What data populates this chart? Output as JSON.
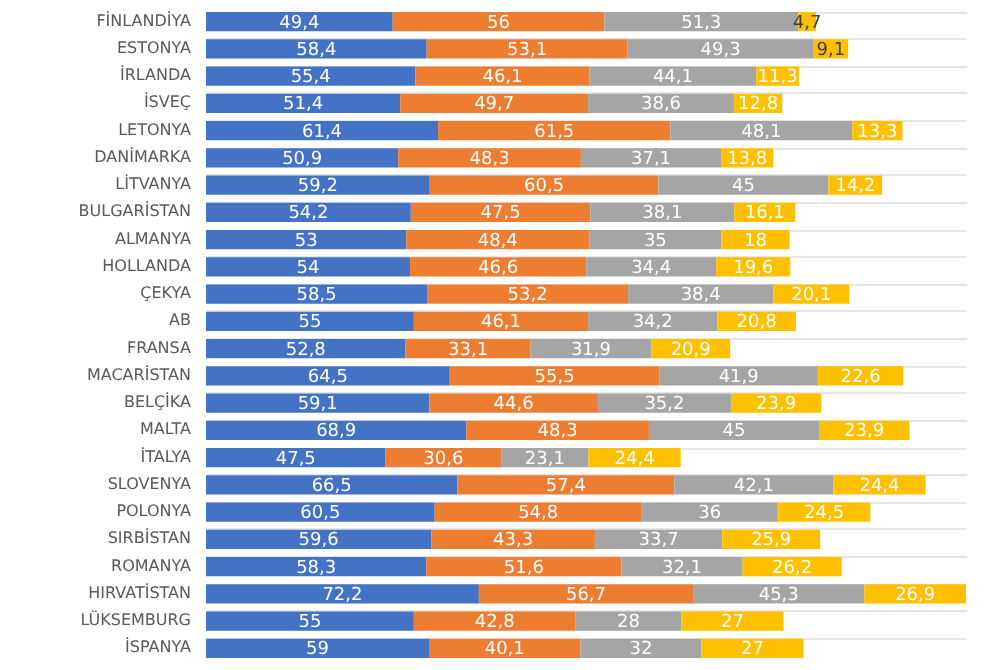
{
  "chart_data": {
    "type": "bar",
    "orientation": "horizontal",
    "stacked": true,
    "tick_labels": "y",
    "grid": "y",
    "categories": [
      "FİNLANDİYA",
      "ESTONYA",
      "İRLANDA",
      "İSVEÇ",
      "LETONYA",
      "DANİMARKA",
      "LİTVANYA",
      "BULGARİSTAN",
      "ALMANYA",
      "HOLLANDA",
      "ÇEKYA",
      "AB",
      "FRANSA",
      "MACARİSTAN",
      "BELÇİKA",
      "MALTA",
      "İTALYA",
      "SLOVENYA",
      "POLONYA",
      "SIRBİSTAN",
      "ROMANYA",
      "HIRVATİSTAN",
      "LÜKSEMBURG",
      "İSPANYA"
    ],
    "series": [
      {
        "color": "#4472c4",
        "values": [
          49.4,
          58.4,
          55.4,
          51.4,
          61.4,
          50.9,
          59.2,
          54.2,
          53,
          54,
          58.5,
          55,
          52.8,
          64.5,
          59.1,
          68.9,
          47.5,
          66.5,
          60.5,
          59.6,
          58.3,
          72.2,
          55,
          59
        ],
        "value_labels": [
          "49,4",
          "58,4",
          "55,4",
          "51,4",
          "61,4",
          "50,9",
          "59,2",
          "54,2",
          "53",
          "54",
          "58,5",
          "55",
          "52,8",
          "64,5",
          "59,1",
          "68,9",
          "47,5",
          "66,5",
          "60,5",
          "59,6",
          "58,3",
          "72,2",
          "55",
          "59"
        ]
      },
      {
        "color": "#ed7d31",
        "values": [
          56,
          53.1,
          46.1,
          49.7,
          61.5,
          48.3,
          60.5,
          47.5,
          48.4,
          46.6,
          53.2,
          46.1,
          33.1,
          55.5,
          44.6,
          48.3,
          30.6,
          57.4,
          54.8,
          43.3,
          51.6,
          56.7,
          42.8,
          40.1
        ],
        "value_labels": [
          "56",
          "53,1",
          "46,1",
          "49,7",
          "61,5",
          "48,3",
          "60,5",
          "47,5",
          "48,4",
          "46,6",
          "53,2",
          "46,1",
          "33,1",
          "55,5",
          "44,6",
          "48,3",
          "30,6",
          "57,4",
          "54,8",
          "43,3",
          "51,6",
          "56,7",
          "42,8",
          "40,1"
        ]
      },
      {
        "color": "#a5a5a5",
        "values": [
          51.3,
          49.3,
          44.1,
          38.6,
          48.1,
          37.1,
          45,
          38.1,
          35,
          34.4,
          38.4,
          34.2,
          31.9,
          41.9,
          35.2,
          45,
          23.1,
          42.1,
          36,
          33.7,
          32.1,
          45.3,
          28,
          32
        ],
        "value_labels": [
          "51,3",
          "49,3",
          "44,1",
          "38,6",
          "48,1",
          "37,1",
          "45",
          "38,1",
          "35",
          "34,4",
          "38,4",
          "34,2",
          "31,9",
          "41,9",
          "35,2",
          "45",
          "23,1",
          "42,1",
          "36",
          "33,7",
          "32,1",
          "45,3",
          "28",
          "32"
        ]
      },
      {
        "color": "#ffc000",
        "values": [
          4.7,
          9.1,
          11.3,
          12.8,
          13.3,
          13.8,
          14.2,
          16.1,
          18,
          19.6,
          20.1,
          20.8,
          20.9,
          22.6,
          23.9,
          23.9,
          24.4,
          24.4,
          24.5,
          25.9,
          26.2,
          26.9,
          27,
          27
        ],
        "value_labels": [
          "4,7",
          "9,1",
          "11,3",
          "12,8",
          "13,3",
          "13,8",
          "14,2",
          "16,1",
          "18",
          "19,6",
          "20,1",
          "20,8",
          "20,9",
          "22,6",
          "23,9",
          "23,9",
          "24,4",
          "24,4",
          "24,5",
          "25,9",
          "26,2",
          "26,9",
          "27",
          "27"
        ]
      }
    ]
  }
}
